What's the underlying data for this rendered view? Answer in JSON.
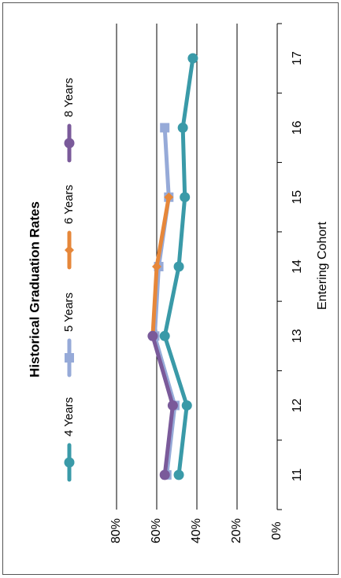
{
  "chart_data": {
    "type": "line",
    "title": "Historical Graduation Rates",
    "xlabel": "Entering Cohort",
    "ylabel": "",
    "categories": [
      "11",
      "12",
      "13",
      "14",
      "15",
      "16",
      "17"
    ],
    "ylim": [
      0,
      0.8
    ],
    "yticks": [
      0,
      0.2,
      0.4,
      0.6,
      0.8
    ],
    "ytick_labels": [
      "0%",
      "20%",
      "40%",
      "60%",
      "80%"
    ],
    "grid": true,
    "legend_position": "top",
    "orientation": "rotated-90",
    "series": [
      {
        "name": "4 Years",
        "color": "#3a9aa8",
        "marker": "circle",
        "values": [
          0.49,
          0.45,
          0.56,
          0.49,
          0.46,
          0.47,
          0.42
        ]
      },
      {
        "name": "5 Years",
        "color": "#96aad8",
        "marker": "square",
        "values": [
          0.55,
          0.51,
          0.61,
          0.59,
          0.54,
          0.56,
          null
        ]
      },
      {
        "name": "6 Years",
        "color": "#e6873a",
        "marker": "diamond",
        "values": [
          null,
          null,
          0.62,
          0.6,
          0.54,
          null,
          null
        ]
      },
      {
        "name": "8 Years",
        "color": "#7a5a9a",
        "marker": "circle",
        "values": [
          0.56,
          0.52,
          0.62,
          null,
          null,
          null,
          null
        ]
      }
    ]
  }
}
